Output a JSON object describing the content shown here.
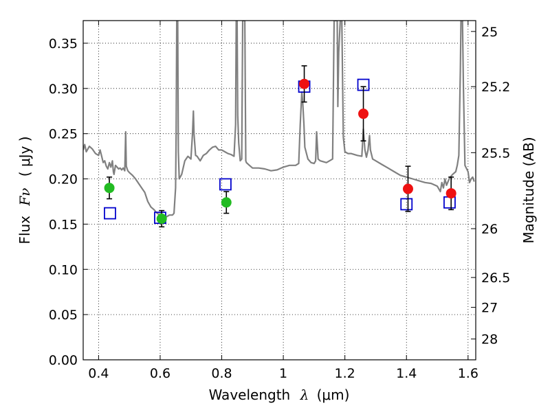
{
  "chart_data": {
    "type": "scatter",
    "title": "",
    "xlabel": "Wavelength",
    "xlabel_symbol": "λ",
    "xlabel_unit": "(μm)",
    "ylabel": "Flux",
    "ylabel_symbol": "Fν",
    "ylabel_unit": "( μJy )",
    "y2label": "Magnitude (AB)",
    "xlim": [
      0.35,
      1.625
    ],
    "ylim": [
      0.0,
      0.375
    ],
    "grid": true,
    "x_ticks": [
      0.4,
      0.6,
      0.8,
      1.0,
      1.2,
      1.4,
      1.6
    ],
    "x_tick_labels": [
      "0.4",
      "0.6",
      "0.8",
      "1",
      "1.2",
      "1.4",
      "1.6"
    ],
    "y_ticks": [
      0.0,
      0.05,
      0.1,
      0.15,
      0.2,
      0.25,
      0.3,
      0.35
    ],
    "y_tick_labels": [
      "0.00",
      "0.05",
      "0.10",
      "0.15",
      "0.20",
      "0.25",
      "0.30",
      "0.35"
    ],
    "y2_ticks": [
      {
        "label": "25",
        "flux": 0.363
      },
      {
        "label": "25.2",
        "flux": 0.302
      },
      {
        "label": "25.5",
        "flux": 0.229
      },
      {
        "label": "26",
        "flux": 0.145
      },
      {
        "label": "26.5",
        "flux": 0.091
      },
      {
        "label": "27",
        "flux": 0.058
      },
      {
        "label": "28",
        "flux": 0.023
      }
    ],
    "colors": {
      "model": "#808080",
      "green": "#22bb22",
      "red": "#ee1111",
      "square": "#0000cc",
      "grid": "#000000"
    },
    "model_spectrum": [
      [
        0.35,
        0.232
      ],
      [
        0.355,
        0.238
      ],
      [
        0.36,
        0.23
      ],
      [
        0.37,
        0.236
      ],
      [
        0.38,
        0.233
      ],
      [
        0.39,
        0.228
      ],
      [
        0.4,
        0.226
      ],
      [
        0.405,
        0.232
      ],
      [
        0.41,
        0.225
      ],
      [
        0.415,
        0.218
      ],
      [
        0.42,
        0.22
      ],
      [
        0.425,
        0.214
      ],
      [
        0.43,
        0.211
      ],
      [
        0.435,
        0.218
      ],
      [
        0.44,
        0.213
      ],
      [
        0.445,
        0.22
      ],
      [
        0.448,
        0.208
      ],
      [
        0.45,
        0.205
      ],
      [
        0.455,
        0.215
      ],
      [
        0.46,
        0.213
      ],
      [
        0.465,
        0.211
      ],
      [
        0.47,
        0.212
      ],
      [
        0.475,
        0.21
      ],
      [
        0.48,
        0.212
      ],
      [
        0.485,
        0.209
      ],
      [
        0.488,
        0.252
      ],
      [
        0.49,
        0.214
      ],
      [
        0.495,
        0.209
      ],
      [
        0.5,
        0.207
      ],
      [
        0.51,
        0.204
      ],
      [
        0.52,
        0.2
      ],
      [
        0.53,
        0.195
      ],
      [
        0.54,
        0.19
      ],
      [
        0.55,
        0.185
      ],
      [
        0.56,
        0.175
      ],
      [
        0.57,
        0.169
      ],
      [
        0.58,
        0.166
      ],
      [
        0.59,
        0.162
      ],
      [
        0.6,
        0.16
      ],
      [
        0.61,
        0.158
      ],
      [
        0.62,
        0.158
      ],
      [
        0.63,
        0.16
      ],
      [
        0.64,
        0.16
      ],
      [
        0.645,
        0.162
      ],
      [
        0.65,
        0.19
      ],
      [
        0.652,
        0.25
      ],
      [
        0.654,
        0.375
      ],
      [
        0.657,
        0.375
      ],
      [
        0.659,
        0.23
      ],
      [
        0.662,
        0.2
      ],
      [
        0.67,
        0.205
      ],
      [
        0.68,
        0.22
      ],
      [
        0.69,
        0.225
      ],
      [
        0.7,
        0.222
      ],
      [
        0.705,
        0.25
      ],
      [
        0.708,
        0.275
      ],
      [
        0.71,
        0.25
      ],
      [
        0.715,
        0.226
      ],
      [
        0.72,
        0.225
      ],
      [
        0.73,
        0.22
      ],
      [
        0.74,
        0.226
      ],
      [
        0.75,
        0.228
      ],
      [
        0.76,
        0.232
      ],
      [
        0.77,
        0.235
      ],
      [
        0.78,
        0.236
      ],
      [
        0.79,
        0.232
      ],
      [
        0.8,
        0.232
      ],
      [
        0.81,
        0.23
      ],
      [
        0.82,
        0.228
      ],
      [
        0.83,
        0.227
      ],
      [
        0.84,
        0.225
      ],
      [
        0.845,
        0.26
      ],
      [
        0.847,
        0.375
      ],
      [
        0.85,
        0.375
      ],
      [
        0.852,
        0.27
      ],
      [
        0.855,
        0.24
      ],
      [
        0.86,
        0.22
      ],
      [
        0.865,
        0.222
      ],
      [
        0.868,
        0.375
      ],
      [
        0.875,
        0.375
      ],
      [
        0.878,
        0.22
      ],
      [
        0.88,
        0.218
      ],
      [
        0.89,
        0.215
      ],
      [
        0.9,
        0.212
      ],
      [
        0.92,
        0.212
      ],
      [
        0.94,
        0.211
      ],
      [
        0.96,
        0.209
      ],
      [
        0.98,
        0.21
      ],
      [
        1.0,
        0.213
      ],
      [
        1.02,
        0.215
      ],
      [
        1.04,
        0.215
      ],
      [
        1.05,
        0.217
      ],
      [
        1.055,
        0.26
      ],
      [
        1.06,
        0.296
      ],
      [
        1.063,
        0.285
      ],
      [
        1.067,
        0.26
      ],
      [
        1.07,
        0.235
      ],
      [
        1.08,
        0.222
      ],
      [
        1.09,
        0.218
      ],
      [
        1.1,
        0.217
      ],
      [
        1.105,
        0.22
      ],
      [
        1.108,
        0.252
      ],
      [
        1.11,
        0.24
      ],
      [
        1.113,
        0.222
      ],
      [
        1.12,
        0.22
      ],
      [
        1.14,
        0.218
      ],
      [
        1.15,
        0.22
      ],
      [
        1.16,
        0.222
      ],
      [
        1.165,
        0.375
      ],
      [
        1.175,
        0.375
      ],
      [
        1.177,
        0.28
      ],
      [
        1.18,
        0.34
      ],
      [
        1.185,
        0.375
      ],
      [
        1.19,
        0.375
      ],
      [
        1.195,
        0.246
      ],
      [
        1.2,
        0.23
      ],
      [
        1.21,
        0.228
      ],
      [
        1.22,
        0.228
      ],
      [
        1.24,
        0.226
      ],
      [
        1.255,
        0.225
      ],
      [
        1.26,
        0.255
      ],
      [
        1.265,
        0.232
      ],
      [
        1.27,
        0.224
      ],
      [
        1.275,
        0.232
      ],
      [
        1.28,
        0.248
      ],
      [
        1.283,
        0.232
      ],
      [
        1.29,
        0.222
      ],
      [
        1.3,
        0.22
      ],
      [
        1.32,
        0.216
      ],
      [
        1.34,
        0.212
      ],
      [
        1.36,
        0.208
      ],
      [
        1.38,
        0.204
      ],
      [
        1.4,
        0.202
      ],
      [
        1.42,
        0.2
      ],
      [
        1.44,
        0.198
      ],
      [
        1.46,
        0.196
      ],
      [
        1.48,
        0.195
      ],
      [
        1.5,
        0.192
      ],
      [
        1.51,
        0.186
      ],
      [
        1.515,
        0.196
      ],
      [
        1.52,
        0.19
      ],
      [
        1.525,
        0.2
      ],
      [
        1.53,
        0.193
      ],
      [
        1.54,
        0.201
      ],
      [
        1.55,
        0.205
      ],
      [
        1.56,
        0.208
      ],
      [
        1.565,
        0.215
      ],
      [
        1.57,
        0.226
      ],
      [
        1.575,
        0.32
      ],
      [
        1.577,
        0.375
      ],
      [
        1.582,
        0.375
      ],
      [
        1.585,
        0.3
      ],
      [
        1.59,
        0.215
      ],
      [
        1.6,
        0.208
      ],
      [
        1.605,
        0.196
      ],
      [
        1.61,
        0.2
      ],
      [
        1.615,
        0.202
      ],
      [
        1.62,
        0.197
      ]
    ],
    "photometry_green": [
      {
        "x": 0.435,
        "y": 0.19,
        "err": 0.012
      },
      {
        "x": 0.605,
        "y": 0.156,
        "err": 0.009
      },
      {
        "x": 0.815,
        "y": 0.174,
        "err": 0.012
      }
    ],
    "photometry_red": [
      {
        "x": 1.068,
        "y": 0.305,
        "err": 0.02
      },
      {
        "x": 1.26,
        "y": 0.272,
        "err": 0.03
      },
      {
        "x": 1.405,
        "y": 0.189,
        "err": 0.025
      },
      {
        "x": 1.545,
        "y": 0.184,
        "err": 0.018
      }
    ],
    "model_squares": [
      {
        "x": 0.437,
        "y": 0.162
      },
      {
        "x": 0.6,
        "y": 0.157
      },
      {
        "x": 0.812,
        "y": 0.194
      },
      {
        "x": 1.068,
        "y": 0.302
      },
      {
        "x": 1.26,
        "y": 0.304
      },
      {
        "x": 1.4,
        "y": 0.172
      },
      {
        "x": 1.54,
        "y": 0.174
      }
    ]
  }
}
